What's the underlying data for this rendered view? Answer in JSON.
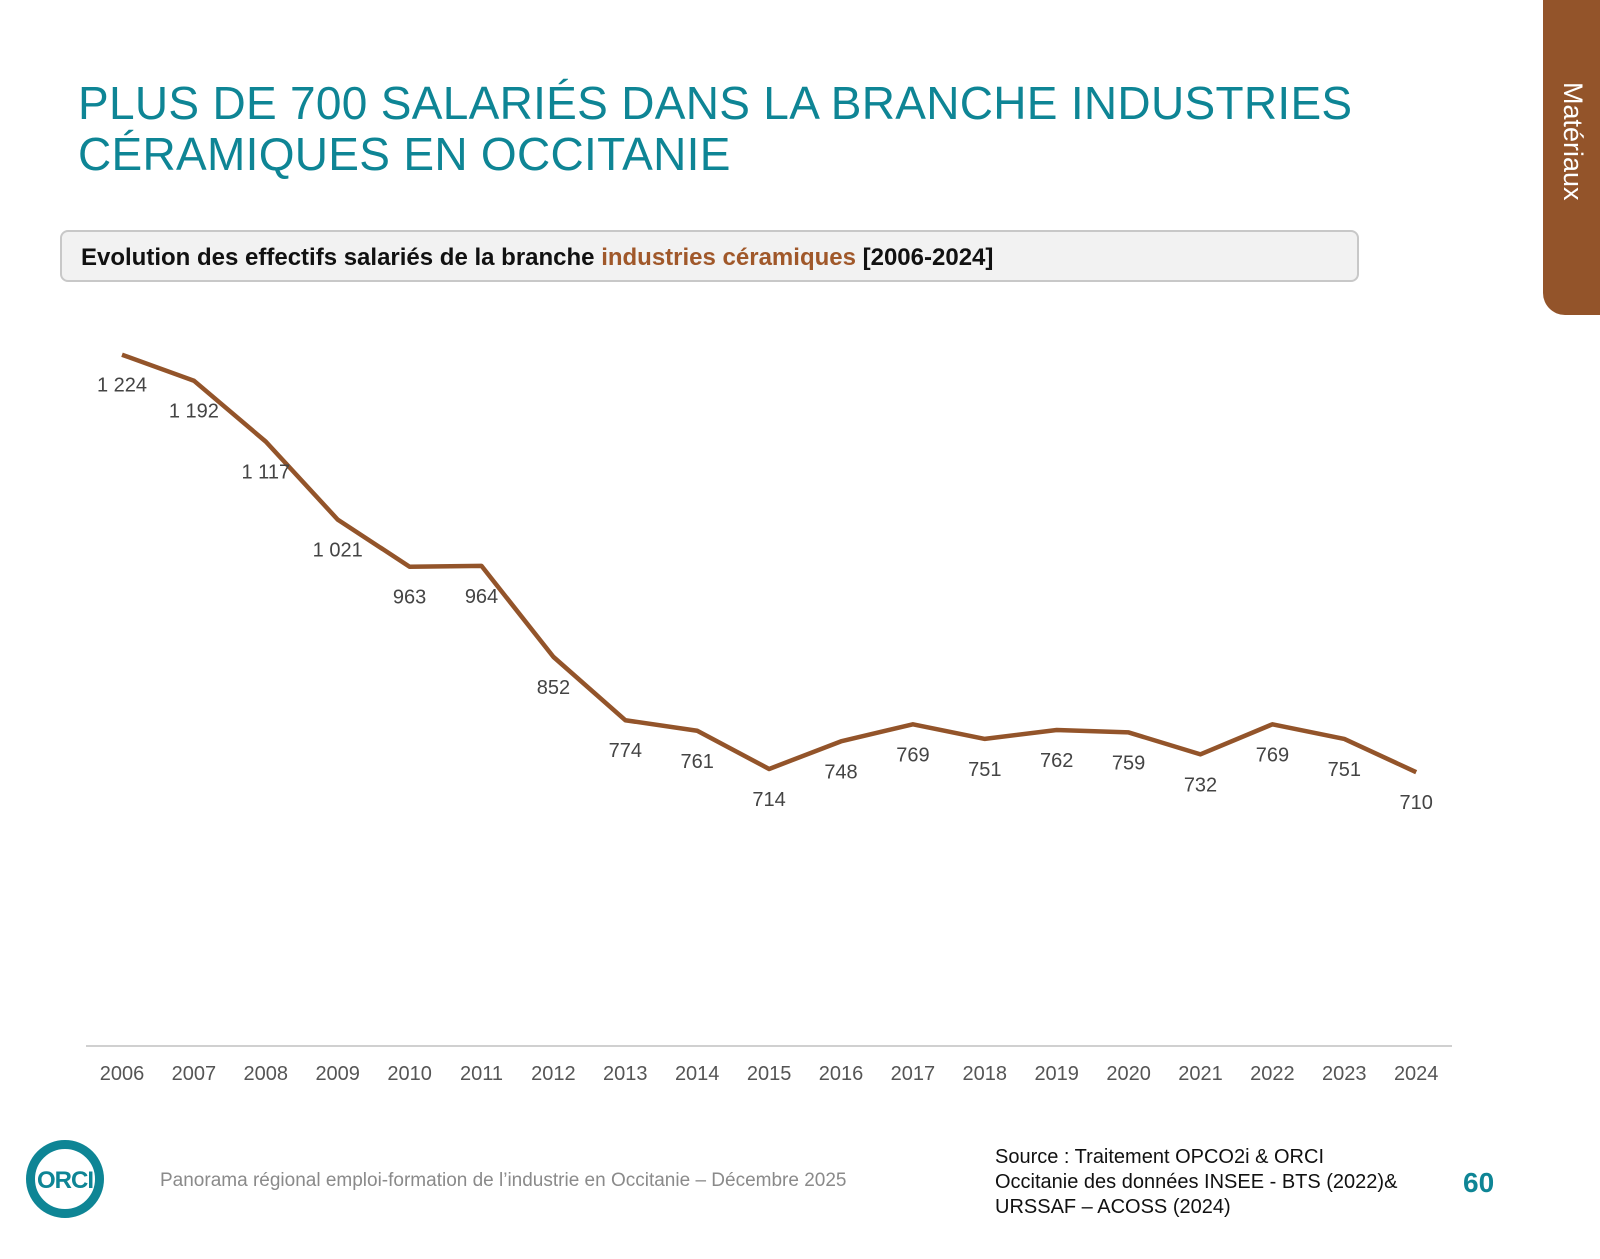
{
  "header": {
    "title_line1": "PLUS DE 700 SALARIÉS DANS LA BRANCHE INDUSTRIES",
    "title_line2": "CÉRAMIQUES EN OCCITANIE",
    "tab": "Matériaux"
  },
  "subtitle": {
    "part1": "Evolution des effectifs salariés de la branche ",
    "highlight": "industries céramiques",
    "part2": " [2006-2024]"
  },
  "footer": {
    "text": "Panorama régional emploi-formation de l’industrie en Occitanie – Décembre 2025",
    "source_line1": "Source : Traitement OPCO2i & ORCI",
    "source_line2": "Occitanie des données  INSEE - BTS (2022)&",
    "source_line3": "URSSAF – ACOSS (2024)",
    "page": "60",
    "logo": "ORCI"
  },
  "colors": {
    "accent": "#0e8595",
    "line": "#93542a",
    "highlight": "#a0582a"
  },
  "chart_data": {
    "type": "line",
    "categories": [
      "2006",
      "2007",
      "2008",
      "2009",
      "2010",
      "2011",
      "2012",
      "2013",
      "2014",
      "2015",
      "2016",
      "2017",
      "2018",
      "2019",
      "2020",
      "2021",
      "2022",
      "2023",
      "2024"
    ],
    "values": [
      1224,
      1192,
      1117,
      1021,
      963,
      964,
      852,
      774,
      761,
      714,
      748,
      769,
      751,
      762,
      759,
      732,
      769,
      751,
      710
    ],
    "labels": [
      "1 224",
      "1 192",
      "1 117",
      "1 021",
      "963",
      "964",
      "852",
      "774",
      "761",
      "714",
      "748",
      "769",
      "751",
      "762",
      "759",
      "732",
      "769",
      "751",
      "710"
    ],
    "ylim": [
      400,
      1300
    ],
    "grid": false,
    "y_axis_shown": false
  }
}
